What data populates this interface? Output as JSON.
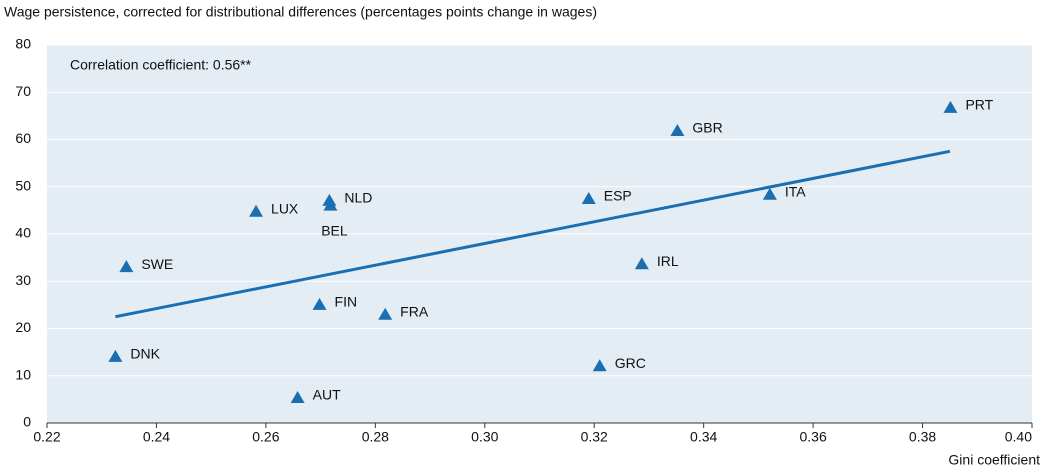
{
  "chart_data": {
    "type": "scatter",
    "title": "Wage persistence, corrected for distributional differences (percentages points change in wages)",
    "annotation": "Correlation coefficient: 0.56**",
    "x_label": "Gini coefficient",
    "labels": [
      "DNK",
      "SWE",
      "LUX",
      "NLD",
      "BEL",
      "FIN",
      "FRA",
      "AUT",
      "ESP",
      "GBR",
      "IRL",
      "GRC",
      "ITA",
      "PRT"
    ],
    "x": [
      0.2325,
      0.2345,
      0.2582,
      0.2716,
      0.2718,
      0.2698,
      0.2818,
      0.2658,
      0.319,
      0.3352,
      0.3287,
      0.321,
      0.3521,
      0.3851
    ],
    "y": [
      14,
      33,
      44.7,
      47,
      46,
      25,
      22.9,
      5.3,
      47.4,
      61.8,
      33.6,
      12,
      48.3,
      66.7
    ],
    "color": "#1a6fb3",
    "trendline": {
      "x": [
        0.2325,
        0.385
      ],
      "y": [
        22.5,
        57.5
      ],
      "color": "#1a6fb3"
    },
    "xlim": [
      0.22,
      0.4
    ],
    "xticks": [
      {
        "value": 0.22,
        "label": "0.22"
      },
      {
        "value": 0.24,
        "label": "0.24"
      },
      {
        "value": 0.26,
        "label": "0.26"
      },
      {
        "value": 0.28,
        "label": "0.28"
      },
      {
        "value": 0.3,
        "label": "0.30"
      },
      {
        "value": 0.32,
        "label": "0.32"
      },
      {
        "value": 0.34,
        "label": "0.34"
      },
      {
        "value": 0.36,
        "label": "0.36"
      },
      {
        "value": 0.38,
        "label": "0.38"
      },
      {
        "value": 0.4,
        "label": "0.40"
      }
    ],
    "ylim": [
      0,
      80
    ],
    "yticks": [
      0,
      10,
      20,
      30,
      40,
      50,
      60,
      70,
      80
    ],
    "grid": true
  }
}
